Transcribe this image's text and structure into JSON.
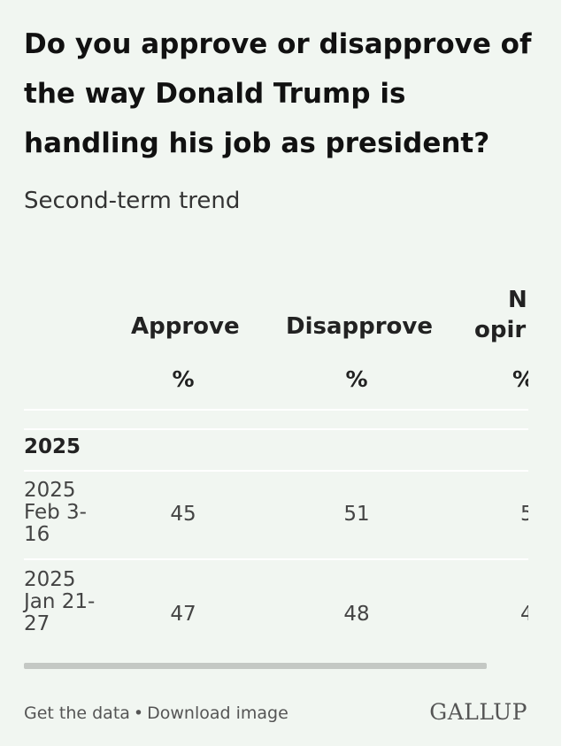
{
  "title": "Do you approve or disapprove of the way Donald Trump is handling his job as president?",
  "subtitle": "Second-term trend",
  "table": {
    "columns": [
      {
        "label": "Approve",
        "unit": "%"
      },
      {
        "label": "Disapprove",
        "unit": "%"
      },
      {
        "label_line1": "N",
        "label_line2": "opir",
        "unit": "%"
      }
    ],
    "group": "2025",
    "rows": [
      {
        "label": "2025 Feb 3-16",
        "values": [
          "45",
          "51",
          "5"
        ]
      },
      {
        "label": "2025 Jan 21-27",
        "values": [
          "47",
          "48",
          "4"
        ]
      }
    ]
  },
  "footer": {
    "get_data": "Get the data",
    "separator": "•",
    "download": "Download image",
    "logo": "GALLUP"
  }
}
